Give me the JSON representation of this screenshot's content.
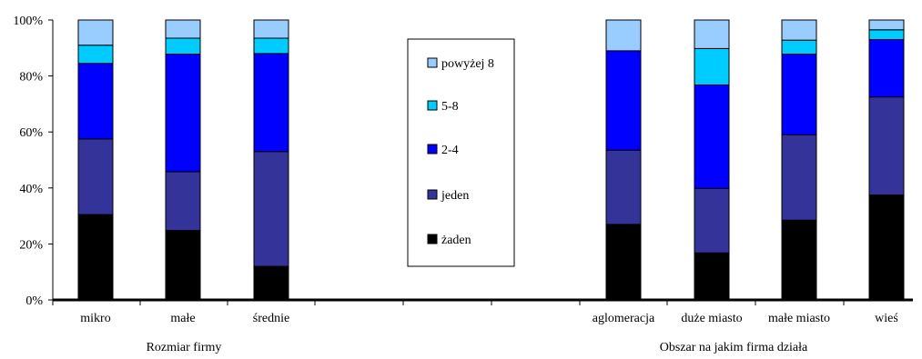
{
  "chart_data": {
    "type": "bar",
    "stacked": true,
    "percent": true,
    "ylim": [
      0,
      100
    ],
    "yticks": [
      "0%",
      "20%",
      "40%",
      "60%",
      "80%",
      "100%"
    ],
    "grid": false,
    "legend_position": "center",
    "groups": [
      {
        "label": "Rozmiar firmy",
        "categories": [
          "mikro",
          "małe",
          "średnie"
        ]
      },
      {
        "label": "Obszar na jakim firma działa",
        "categories": [
          "aglomeracja",
          "duże miasto",
          "małe miasto",
          "wieś"
        ]
      }
    ],
    "categories": [
      "mikro",
      "małe",
      "średnie",
      "aglomeracja",
      "duże miasto",
      "małe miasto",
      "wieś"
    ],
    "series": [
      {
        "name": "żaden",
        "color": "#000000",
        "values": [
          30.5,
          24.8,
          12.0,
          27.0,
          16.8,
          28.5,
          37.5
        ]
      },
      {
        "name": "jeden",
        "color": "#33339a",
        "values": [
          27.0,
          21.0,
          41.0,
          26.5,
          23.0,
          30.5,
          35.0
        ]
      },
      {
        "name": "2-4",
        "color": "#0000ff",
        "values": [
          27.0,
          42.0,
          35.0,
          35.5,
          37.0,
          28.8,
          20.5
        ]
      },
      {
        "name": "5-8",
        "color": "#00ccff",
        "values": [
          6.5,
          5.7,
          5.5,
          0.0,
          13.0,
          5.0,
          3.5
        ]
      },
      {
        "name": "powyżej 8",
        "color": "#99ccff",
        "values": [
          9.0,
          6.5,
          6.5,
          11.0,
          10.2,
          7.2,
          3.5
        ]
      }
    ]
  }
}
